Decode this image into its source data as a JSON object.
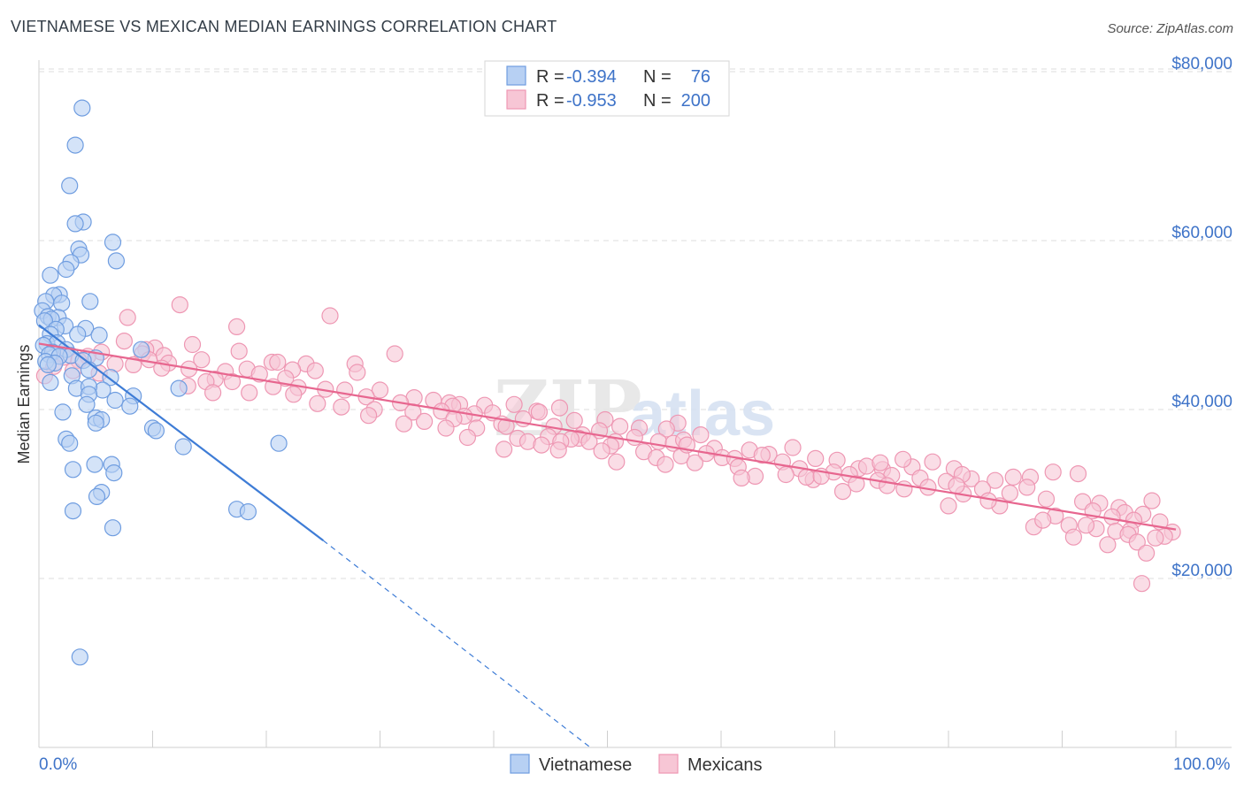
{
  "header": {
    "title": "VIETNAMESE VS MEXICAN MEDIAN EARNINGS CORRELATION CHART",
    "source": "Source: ZipAtlas.com"
  },
  "watermark": {
    "zip": "ZIP",
    "atlas": "atlas"
  },
  "colors": {
    "blue": "#3e7cd6",
    "blue_fill": "#b7d0f3",
    "blue_stroke": "#6f9de0",
    "pink": "#e7668f",
    "pink_fill": "#f7c6d5",
    "pink_stroke": "#ee97b3",
    "tick_text": "#3e73c8",
    "grid": "#dddddd"
  },
  "legend": {
    "rows": [
      {
        "r_label": "R = ",
        "r_value": "-0.394",
        "n_label": "N = ",
        "n_value": "76",
        "series": "blue"
      },
      {
        "r_label": "R = ",
        "r_value": "-0.953",
        "n_label": "N = ",
        "n_value": "200",
        "series": "pink"
      }
    ]
  },
  "chart_data": {
    "type": "scatter",
    "title": "VIETNAMESE VS MEXICAN MEDIAN EARNINGS CORRELATION CHART",
    "xlabel": "",
    "ylabel": "Median Earnings",
    "xlim": [
      0,
      100
    ],
    "ylim": [
      0,
      82000
    ],
    "x_tick_labels": [
      "0.0%",
      "100.0%"
    ],
    "y_ticks": [
      20000,
      40000,
      60000,
      80000
    ],
    "y_tick_labels": [
      "$20,000",
      "$40,000",
      "$60,000",
      "$80,000"
    ],
    "legend_position": "top-center",
    "series": [
      {
        "name": "Vietnamese",
        "color": "blue",
        "r": -0.394,
        "n": 76,
        "trend": {
          "x0": 0,
          "y0": 50000,
          "x1": 25,
          "y1": 24500,
          "dash_to_x": 48.5,
          "dash_to_y": 0
        },
        "points": [
          [
            3.8,
            75700
          ],
          [
            3.2,
            71300
          ],
          [
            2.7,
            66500
          ],
          [
            3.9,
            62200
          ],
          [
            3.2,
            62000
          ],
          [
            6.5,
            59800
          ],
          [
            3.5,
            59000
          ],
          [
            3.7,
            58300
          ],
          [
            2.8,
            57400
          ],
          [
            6.8,
            57600
          ],
          [
            2.4,
            56600
          ],
          [
            1.0,
            55900
          ],
          [
            1.8,
            53600
          ],
          [
            1.3,
            53500
          ],
          [
            0.6,
            52800
          ],
          [
            4.5,
            52800
          ],
          [
            2.0,
            52600
          ],
          [
            0.3,
            51700
          ],
          [
            0.8,
            51000
          ],
          [
            1.7,
            50900
          ],
          [
            1.1,
            50700
          ],
          [
            0.5,
            50500
          ],
          [
            2.3,
            49900
          ],
          [
            4.1,
            49600
          ],
          [
            1.5,
            49500
          ],
          [
            1.0,
            48900
          ],
          [
            3.4,
            48900
          ],
          [
            5.3,
            48800
          ],
          [
            0.7,
            47800
          ],
          [
            1.6,
            47900
          ],
          [
            0.4,
            47600
          ],
          [
            2.4,
            47100
          ],
          [
            9.0,
            47100
          ],
          [
            1.2,
            46800
          ],
          [
            0.9,
            46500
          ],
          [
            2.8,
            46400
          ],
          [
            1.8,
            46300
          ],
          [
            5.0,
            46100
          ],
          [
            0.6,
            45700
          ],
          [
            3.9,
            45800
          ],
          [
            1.4,
            45500
          ],
          [
            0.8,
            45300
          ],
          [
            4.4,
            44700
          ],
          [
            2.9,
            44000
          ],
          [
            6.3,
            43800
          ],
          [
            1.0,
            43200
          ],
          [
            3.3,
            42500
          ],
          [
            5.6,
            42300
          ],
          [
            4.4,
            42700
          ],
          [
            12.3,
            42500
          ],
          [
            4.4,
            41800
          ],
          [
            8.3,
            41600
          ],
          [
            4.2,
            40600
          ],
          [
            6.7,
            41100
          ],
          [
            8.0,
            40400
          ],
          [
            2.1,
            39700
          ],
          [
            5.0,
            39000
          ],
          [
            5.5,
            38800
          ],
          [
            5.0,
            38400
          ],
          [
            10.0,
            37800
          ],
          [
            10.3,
            37500
          ],
          [
            2.4,
            36500
          ],
          [
            2.7,
            36000
          ],
          [
            12.7,
            35600
          ],
          [
            21.1,
            36000
          ],
          [
            6.4,
            33500
          ],
          [
            4.9,
            33500
          ],
          [
            3.0,
            32900
          ],
          [
            6.6,
            32500
          ],
          [
            5.5,
            30200
          ],
          [
            5.1,
            29700
          ],
          [
            3.0,
            28000
          ],
          [
            17.4,
            28200
          ],
          [
            18.4,
            27900
          ],
          [
            6.5,
            26000
          ],
          [
            3.6,
            10700
          ]
        ]
      },
      {
        "name": "Mexicans",
        "color": "pink",
        "r": -0.953,
        "n": 200,
        "trend": {
          "x0": 0,
          "y0": 47800,
          "x1": 100,
          "y1": 25800
        },
        "points": [
          [
            12.4,
            52400
          ],
          [
            7.8,
            50900
          ],
          [
            25.6,
            51100
          ],
          [
            17.4,
            49800
          ],
          [
            13.5,
            47700
          ],
          [
            7.5,
            48100
          ],
          [
            10.2,
            47300
          ],
          [
            9.4,
            47100
          ],
          [
            17.6,
            46900
          ],
          [
            31.3,
            46600
          ],
          [
            5.5,
            46800
          ],
          [
            9.1,
            46600
          ],
          [
            4.3,
            46300
          ],
          [
            2.2,
            46200
          ],
          [
            11.0,
            46400
          ],
          [
            9.7,
            45900
          ],
          [
            11.4,
            45500
          ],
          [
            14.3,
            45900
          ],
          [
            3.5,
            45800
          ],
          [
            6.7,
            45400
          ],
          [
            20.5,
            45600
          ],
          [
            21.0,
            45600
          ],
          [
            23.5,
            45400
          ],
          [
            27.8,
            45400
          ],
          [
            8.3,
            45300
          ],
          [
            1.3,
            45100
          ],
          [
            10.8,
            44900
          ],
          [
            13.2,
            44800
          ],
          [
            18.3,
            44800
          ],
          [
            22.3,
            44700
          ],
          [
            24.3,
            44600
          ],
          [
            28.0,
            44400
          ],
          [
            3.0,
            44600
          ],
          [
            5.3,
            44300
          ],
          [
            16.4,
            44500
          ],
          [
            0.5,
            44000
          ],
          [
            19.4,
            44200
          ],
          [
            21.7,
            43700
          ],
          [
            15.5,
            43600
          ],
          [
            14.7,
            43300
          ],
          [
            17.0,
            43300
          ],
          [
            13.1,
            42800
          ],
          [
            20.6,
            42700
          ],
          [
            22.8,
            42600
          ],
          [
            25.2,
            42400
          ],
          [
            26.9,
            42300
          ],
          [
            15.3,
            42000
          ],
          [
            18.5,
            42000
          ],
          [
            22.4,
            41800
          ],
          [
            30.0,
            42300
          ],
          [
            28.8,
            41500
          ],
          [
            33.0,
            41400
          ],
          [
            34.7,
            41100
          ],
          [
            31.8,
            40800
          ],
          [
            24.5,
            40700
          ],
          [
            36.1,
            40800
          ],
          [
            37.0,
            40600
          ],
          [
            36.4,
            40400
          ],
          [
            39.2,
            40500
          ],
          [
            26.6,
            40300
          ],
          [
            29.5,
            40000
          ],
          [
            35.4,
            39800
          ],
          [
            32.9,
            39700
          ],
          [
            43.8,
            39800
          ],
          [
            39.9,
            39600
          ],
          [
            38.3,
            39500
          ],
          [
            29.0,
            39300
          ],
          [
            37.4,
            39200
          ],
          [
            36.5,
            38900
          ],
          [
            41.8,
            40600
          ],
          [
            33.9,
            38600
          ],
          [
            45.8,
            40200
          ],
          [
            44.0,
            39700
          ],
          [
            42.6,
            38900
          ],
          [
            49.8,
            38800
          ],
          [
            32.1,
            38300
          ],
          [
            47.1,
            38700
          ],
          [
            40.7,
            38300
          ],
          [
            41.1,
            38000
          ],
          [
            35.8,
            37800
          ],
          [
            38.5,
            37800
          ],
          [
            49.3,
            37500
          ],
          [
            52.8,
            37800
          ],
          [
            56.2,
            38400
          ],
          [
            45.3,
            38000
          ],
          [
            51.1,
            38000
          ],
          [
            47.8,
            37000
          ],
          [
            55.2,
            37700
          ],
          [
            58.2,
            37000
          ],
          [
            44.8,
            36800
          ],
          [
            47.5,
            36600
          ],
          [
            42.1,
            36600
          ],
          [
            46.8,
            36500
          ],
          [
            37.7,
            36700
          ],
          [
            45.9,
            36200
          ],
          [
            43.0,
            36200
          ],
          [
            52.4,
            36700
          ],
          [
            54.5,
            36200
          ],
          [
            48.4,
            36200
          ],
          [
            50.7,
            36200
          ],
          [
            55.8,
            36000
          ],
          [
            56.7,
            36400
          ],
          [
            44.2,
            35800
          ],
          [
            50.3,
            35700
          ],
          [
            59.4,
            35400
          ],
          [
            40.9,
            35300
          ],
          [
            45.7,
            35200
          ],
          [
            49.5,
            35100
          ],
          [
            53.2,
            35000
          ],
          [
            58.7,
            34800
          ],
          [
            62.5,
            35200
          ],
          [
            64.2,
            34700
          ],
          [
            60.1,
            34300
          ],
          [
            66.3,
            35500
          ],
          [
            56.5,
            34500
          ],
          [
            61.2,
            34200
          ],
          [
            63.6,
            34600
          ],
          [
            68.3,
            34200
          ],
          [
            70.2,
            34000
          ],
          [
            65.4,
            33800
          ],
          [
            57.7,
            33700
          ],
          [
            54.3,
            34300
          ],
          [
            50.8,
            33800
          ],
          [
            55.1,
            33500
          ],
          [
            61.5,
            33200
          ],
          [
            66.9,
            33000
          ],
          [
            72.1,
            33000
          ],
          [
            74.2,
            32900
          ],
          [
            69.9,
            32600
          ],
          [
            71.3,
            32300
          ],
          [
            63.0,
            32100
          ],
          [
            68.1,
            31700
          ],
          [
            75.0,
            32200
          ],
          [
            76.8,
            33200
          ],
          [
            78.6,
            33800
          ],
          [
            80.5,
            33000
          ],
          [
            73.8,
            31600
          ],
          [
            77.5,
            31900
          ],
          [
            79.8,
            31500
          ],
          [
            82.0,
            31800
          ],
          [
            65.7,
            32300
          ],
          [
            71.9,
            31200
          ],
          [
            74.6,
            31000
          ],
          [
            76.1,
            30600
          ],
          [
            84.1,
            31600
          ],
          [
            85.7,
            32000
          ],
          [
            83.0,
            30600
          ],
          [
            87.2,
            32000
          ],
          [
            81.3,
            30000
          ],
          [
            86.9,
            30800
          ],
          [
            91.4,
            32400
          ],
          [
            89.2,
            32600
          ],
          [
            85.4,
            30100
          ],
          [
            88.6,
            29400
          ],
          [
            91.8,
            29100
          ],
          [
            93.3,
            28900
          ],
          [
            95.0,
            28400
          ],
          [
            97.9,
            29200
          ],
          [
            92.7,
            28000
          ],
          [
            95.5,
            27800
          ],
          [
            97.1,
            27600
          ],
          [
            84.5,
            28600
          ],
          [
            89.4,
            27400
          ],
          [
            94.4,
            27300
          ],
          [
            96.3,
            26900
          ],
          [
            98.6,
            26700
          ],
          [
            99.7,
            25500
          ],
          [
            96.0,
            25700
          ],
          [
            87.5,
            26100
          ],
          [
            90.6,
            26300
          ],
          [
            93.0,
            25900
          ],
          [
            94.7,
            25600
          ],
          [
            88.3,
            26900
          ],
          [
            92.1,
            26300
          ],
          [
            95.8,
            25200
          ],
          [
            99.0,
            25000
          ],
          [
            98.2,
            24800
          ],
          [
            96.6,
            24300
          ],
          [
            94.0,
            24000
          ],
          [
            91.0,
            24900
          ],
          [
            76.0,
            34100
          ],
          [
            78.2,
            30800
          ],
          [
            80.0,
            28600
          ],
          [
            81.2,
            32300
          ],
          [
            72.8,
            33300
          ],
          [
            67.5,
            32000
          ],
          [
            70.7,
            30300
          ],
          [
            57.0,
            35800
          ],
          [
            61.8,
            31900
          ],
          [
            97.4,
            23000
          ],
          [
            97.0,
            19400
          ],
          [
            74.0,
            33700
          ],
          [
            68.8,
            32100
          ],
          [
            80.7,
            31000
          ],
          [
            83.5,
            29200
          ]
        ]
      }
    ]
  },
  "bottom_legend": [
    "Vietnamese",
    "Mexicans"
  ]
}
